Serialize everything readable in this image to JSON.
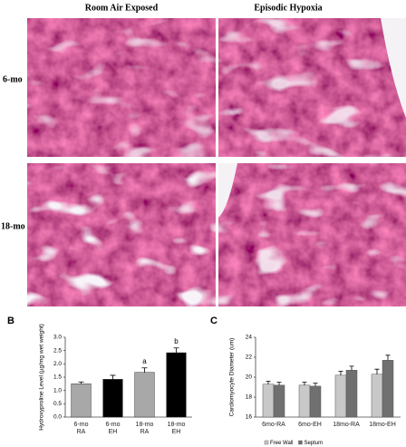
{
  "panel_a": {
    "column_headers": [
      "Room Air Exposed",
      "Episodic Hypoxia"
    ],
    "row_labels": [
      "6-mo",
      "18-mo"
    ]
  },
  "chart_data": [
    {
      "type": "bar",
      "panel": "B",
      "y_label": "Hydroxyproline Level (µg/mg wet weight)",
      "categories": [
        "6-mo RA",
        "6-mo EH",
        "18-mo RA",
        "18-mo EH"
      ],
      "values": [
        1.25,
        1.42,
        1.68,
        2.42
      ],
      "errors": [
        0.07,
        0.15,
        0.17,
        0.18
      ],
      "bar_labels": [
        null,
        null,
        "a",
        "b"
      ],
      "colors": [
        "#a8a8a8",
        "#000000",
        "#a8a8a8",
        "#000000"
      ],
      "ylim": [
        0,
        3
      ],
      "yticks": [
        {
          "value": 0,
          "label": "0.0"
        },
        {
          "value": 0.5,
          "label": "0.5"
        },
        {
          "value": 1,
          "label": "1.0"
        },
        {
          "value": 1.5,
          "label": "1.5"
        },
        {
          "value": 2,
          "label": "2.0"
        },
        {
          "value": 2.5,
          "label": "2.5"
        },
        {
          "value": 3,
          "label": "3.0"
        }
      ]
    },
    {
      "type": "grouped_bar",
      "panel": "C",
      "y_label": "Cardiomyocyte Diameter (um)",
      "categories": [
        "6mo-RA",
        "6mo-EH",
        "18mo-RA",
        "18mo-EH"
      ],
      "series": [
        {
          "name": "Free Wall",
          "color": "#c8c8c8",
          "values": [
            19.3,
            19.2,
            20.2,
            20.3
          ],
          "errors": [
            0.3,
            0.3,
            0.4,
            0.5
          ]
        },
        {
          "name": "Septum",
          "color": "#707070",
          "values": [
            19.2,
            19.1,
            20.7,
            21.7
          ],
          "errors": [
            0.3,
            0.3,
            0.4,
            0.5
          ]
        }
      ],
      "ylim": [
        16,
        24
      ],
      "yticks": [
        16,
        18,
        20,
        22,
        24
      ]
    }
  ]
}
